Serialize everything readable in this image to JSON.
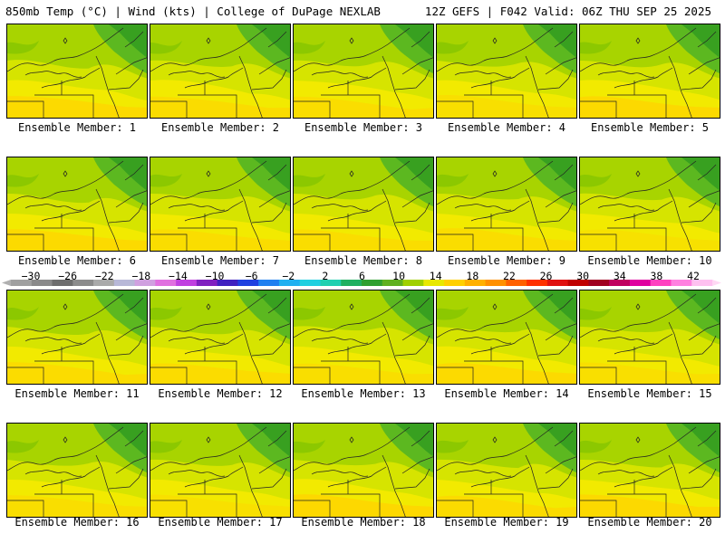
{
  "header": {
    "left": "850mb Temp (°C) | Wind (kts) | College of DuPage NEXLAB",
    "right": "12Z GEFS | F042 Valid: 06Z THU SEP 25 2025"
  },
  "members": [
    {
      "label": "Ensemble Member: 1"
    },
    {
      "label": "Ensemble Member: 2"
    },
    {
      "label": "Ensemble Member: 3"
    },
    {
      "label": "Ensemble Member: 4"
    },
    {
      "label": "Ensemble Member: 5"
    },
    {
      "label": "Ensemble Member: 6"
    },
    {
      "label": "Ensemble Member: 7"
    },
    {
      "label": "Ensemble Member: 8"
    },
    {
      "label": "Ensemble Member: 9"
    },
    {
      "label": "Ensemble Member: 10"
    },
    {
      "label": "Ensemble Member: 11"
    },
    {
      "label": "Ensemble Member: 12"
    },
    {
      "label": "Ensemble Member: 13"
    },
    {
      "label": "Ensemble Member: 14"
    },
    {
      "label": "Ensemble Member: 15"
    },
    {
      "label": "Ensemble Member: 16"
    },
    {
      "label": "Ensemble Member: 17"
    },
    {
      "label": "Ensemble Member: 18"
    },
    {
      "label": "Ensemble Member: 19"
    },
    {
      "label": "Ensemble Member: 20"
    }
  ],
  "colorbar": {
    "labels": [
      "-30",
      "-26",
      "-22",
      "-18",
      "-14",
      "-10",
      "-6",
      "-2",
      "2",
      "6",
      "10",
      "14",
      "18",
      "22",
      "26",
      "30",
      "34",
      "38",
      "42"
    ],
    "colors": [
      "#a0a0a0",
      "#8a8a8a",
      "#6e6e6e",
      "#8c8c8c",
      "#aaaaaa",
      "#b8b8d8",
      "#d0a0e0",
      "#e070e0",
      "#c040e0",
      "#8020c0",
      "#4020c0",
      "#2040e0",
      "#2080f0",
      "#20b0f0",
      "#20d0e0",
      "#20d0b0",
      "#20b060",
      "#30a030",
      "#60b020",
      "#a0d000",
      "#e8e800",
      "#ffd000",
      "#ffb000",
      "#ff9000",
      "#ff6000",
      "#ff3000",
      "#e01010",
      "#c00000",
      "#a00020",
      "#c00060",
      "#e000a0",
      "#ff40c0",
      "#ff80e0",
      "#ffc0f0"
    ]
  }
}
